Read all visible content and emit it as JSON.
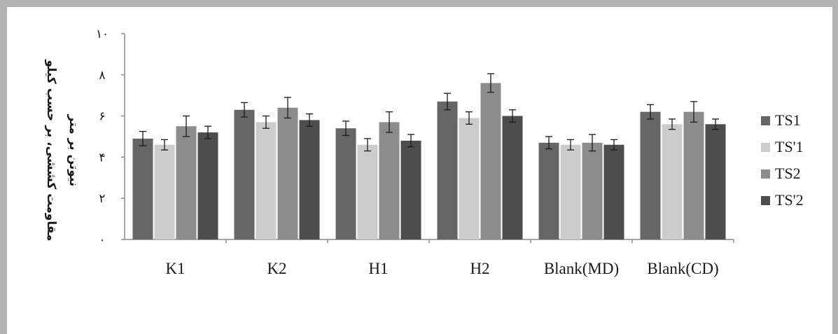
{
  "chart_data": {
    "type": "bar",
    "ylabel_lines": [
      "مقاومت کششی، بر حسب کیلو",
      "نیوتن بر متر"
    ],
    "y_ticks": [
      {
        "value": 0,
        "label": "۰"
      },
      {
        "value": 2,
        "label": "۲"
      },
      {
        "value": 4,
        "label": "۴"
      },
      {
        "value": 6,
        "label": "۶"
      },
      {
        "value": 8,
        "label": "۸"
      },
      {
        "value": 10,
        "label": "۱۰"
      }
    ],
    "ylim": [
      0,
      10
    ],
    "grid": false,
    "legend_position": "right",
    "categories": [
      "K1",
      "K2",
      "H1",
      "H2",
      "Blank(MD)",
      "Blank(CD)"
    ],
    "series": [
      {
        "name": "TS1",
        "color": "#666666",
        "values": [
          4.9,
          6.3,
          5.4,
          6.7,
          4.7,
          6.2
        ],
        "errors": [
          0.35,
          0.35,
          0.35,
          0.4,
          0.3,
          0.35
        ]
      },
      {
        "name": "TS'1",
        "color": "#cccccc",
        "values": [
          4.6,
          5.7,
          4.6,
          5.9,
          4.6,
          5.6
        ],
        "errors": [
          0.25,
          0.3,
          0.3,
          0.3,
          0.25,
          0.25
        ]
      },
      {
        "name": "TS2",
        "color": "#8c8c8c",
        "values": [
          5.5,
          6.4,
          5.7,
          7.6,
          4.7,
          6.2
        ],
        "errors": [
          0.5,
          0.5,
          0.5,
          0.45,
          0.4,
          0.5
        ]
      },
      {
        "name": "TS'2",
        "color": "#4d4d4d",
        "values": [
          5.2,
          5.8,
          4.8,
          6.0,
          4.6,
          5.6
        ],
        "errors": [
          0.3,
          0.3,
          0.3,
          0.3,
          0.25,
          0.25
        ]
      }
    ]
  }
}
